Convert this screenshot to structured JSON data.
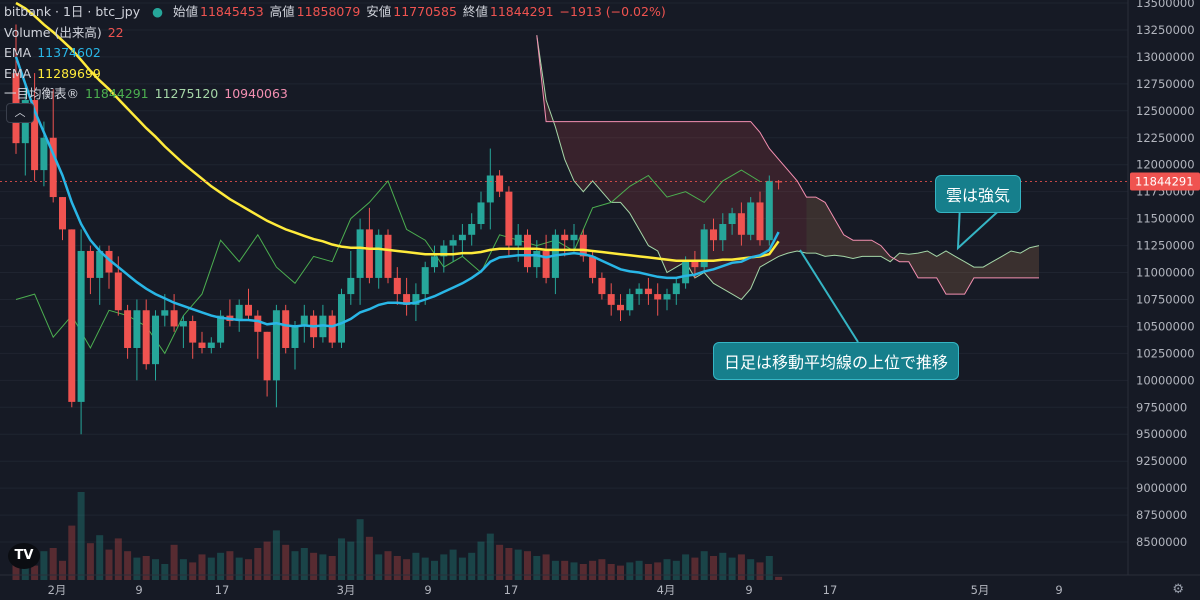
{
  "header": {
    "symbol": "bitbank · 1日 · btc_jpy",
    "ohlc": [
      {
        "label": "始値",
        "value": "11845453"
      },
      {
        "label": "高値",
        "value": "11858079"
      },
      {
        "label": "安値",
        "value": "11770585"
      },
      {
        "label": "終値",
        "value": "11844291"
      }
    ],
    "change": "−1913 (−0.02%)",
    "volume_label": "Volume (出来高)",
    "volume_value": "22",
    "ema1_label": "EMA",
    "ema1_value": "11374602",
    "ema2_label": "EMA",
    "ema2_value": "11289699",
    "ichimoku_label": "一目均衡表®",
    "ichimoku_values": [
      "11844291",
      "11275120",
      "10940063"
    ],
    "collapse_icon": "chevron-up-icon"
  },
  "annotations": {
    "cloud_strong": "雲は強気",
    "price_above_ma": "日足は移動平均線の上位で推移"
  },
  "last_price_label": "11844291",
  "colors": {
    "bg": "#161a25",
    "up": "#26a69a",
    "down": "#ef5350",
    "ema_fast": "#29b6e6",
    "ema_slow": "#ffeb3b",
    "lagging": "#4caf50",
    "span_a": "#a5d6a7",
    "span_b": "#f48fb1",
    "callout": "#167f8c"
  },
  "chart_data": {
    "type": "candlestick",
    "x_ticks": [
      "2月",
      "9",
      "17",
      "3月",
      "9",
      "17",
      "4月",
      "9",
      "17",
      "5月",
      "9"
    ],
    "y_ticks": [
      "13500000",
      "13250000",
      "13000000",
      "12750000",
      "12500000",
      "12250000",
      "12000000",
      "11750000",
      "11500000",
      "11250000",
      "11000000",
      "10750000",
      "10500000",
      "10250000",
      "10000000",
      "9750000",
      "9500000",
      "9250000",
      "9000000",
      "8750000",
      "8500000"
    ],
    "ylim": [
      8250000,
      13500000
    ],
    "candles": [
      [
        12850000,
        13300000,
        12100000,
        12200000
      ],
      [
        12200000,
        12750000,
        11900000,
        12600000
      ],
      [
        12600000,
        12850000,
        11850000,
        11950000
      ],
      [
        11950000,
        12400000,
        11800000,
        12250000
      ],
      [
        12250000,
        12700000,
        11650000,
        11700000
      ],
      [
        11700000,
        11700000,
        11300000,
        11400000
      ],
      [
        11400000,
        11400000,
        9750000,
        9800000
      ],
      [
        9800000,
        11400000,
        9500000,
        11200000
      ],
      [
        11200000,
        11250000,
        10800000,
        10950000
      ],
      [
        10950000,
        11250000,
        10700000,
        11200000
      ],
      [
        11200000,
        11250000,
        10850000,
        11000000
      ],
      [
        11000000,
        11150000,
        10600000,
        10650000
      ],
      [
        10650000,
        10700000,
        10200000,
        10300000
      ],
      [
        10300000,
        10750000,
        10000000,
        10650000
      ],
      [
        10650000,
        10750000,
        10100000,
        10150000
      ],
      [
        10150000,
        10650000,
        10000000,
        10600000
      ],
      [
        10600000,
        10800000,
        10500000,
        10650000
      ],
      [
        10650000,
        10800000,
        10450000,
        10500000
      ],
      [
        10500000,
        10600000,
        10300000,
        10550000
      ],
      [
        10550000,
        10600000,
        10200000,
        10350000
      ],
      [
        10350000,
        10450000,
        10250000,
        10300000
      ],
      [
        10300000,
        10400000,
        10250000,
        10350000
      ],
      [
        10350000,
        10650000,
        10300000,
        10600000
      ],
      [
        10600000,
        10750000,
        10500000,
        10550000
      ],
      [
        10550000,
        10750000,
        10450000,
        10700000
      ],
      [
        10700000,
        10850000,
        10550000,
        10600000
      ],
      [
        10600000,
        10650000,
        10200000,
        10450000
      ],
      [
        10450000,
        10450000,
        9850000,
        10000000
      ],
      [
        10000000,
        10700000,
        9750000,
        10650000
      ],
      [
        10650000,
        10700000,
        10250000,
        10300000
      ],
      [
        10300000,
        10550000,
        10100000,
        10500000
      ],
      [
        10500000,
        10700000,
        10350000,
        10600000
      ],
      [
        10600000,
        10650000,
        10300000,
        10400000
      ],
      [
        10400000,
        10700000,
        10350000,
        10600000
      ],
      [
        10600000,
        10650000,
        10300000,
        10350000
      ],
      [
        10350000,
        10850000,
        10300000,
        10800000
      ],
      [
        10800000,
        11200000,
        10700000,
        10950000
      ],
      [
        10950000,
        11500000,
        10700000,
        11400000
      ],
      [
        11400000,
        11600000,
        10900000,
        10950000
      ],
      [
        10950000,
        11400000,
        10850000,
        11350000
      ],
      [
        11350000,
        11400000,
        10900000,
        10950000
      ],
      [
        10950000,
        11050000,
        10700000,
        10800000
      ],
      [
        10800000,
        10950000,
        10600000,
        10700000
      ],
      [
        10700000,
        10900000,
        10550000,
        10800000
      ],
      [
        10800000,
        11100000,
        10700000,
        11050000
      ],
      [
        11050000,
        11250000,
        11000000,
        11150000
      ],
      [
        11150000,
        11300000,
        11000000,
        11250000
      ],
      [
        11250000,
        11350000,
        11100000,
        11300000
      ],
      [
        11300000,
        11450000,
        11150000,
        11350000
      ],
      [
        11350000,
        11550000,
        11250000,
        11450000
      ],
      [
        11450000,
        11750000,
        11400000,
        11650000
      ],
      [
        11650000,
        12150000,
        11400000,
        11900000
      ],
      [
        11900000,
        11950000,
        11700000,
        11750000
      ],
      [
        11750000,
        11800000,
        11150000,
        11250000
      ],
      [
        11250000,
        11450000,
        11100000,
        11350000
      ],
      [
        11350000,
        11400000,
        11000000,
        11050000
      ],
      [
        11050000,
        11300000,
        10950000,
        11200000
      ],
      [
        11200000,
        11350000,
        10900000,
        10950000
      ],
      [
        10950000,
        11400000,
        10800000,
        11350000
      ],
      [
        11350000,
        11400000,
        11150000,
        11300000
      ],
      [
        11300000,
        11450000,
        11200000,
        11350000
      ],
      [
        11350000,
        11400000,
        11100000,
        11150000
      ],
      [
        11150000,
        11200000,
        10900000,
        10950000
      ],
      [
        10950000,
        11000000,
        10750000,
        10800000
      ],
      [
        10800000,
        10900000,
        10600000,
        10700000
      ],
      [
        10700000,
        10800000,
        10550000,
        10650000
      ],
      [
        10650000,
        10850000,
        10600000,
        10800000
      ],
      [
        10800000,
        10900000,
        10700000,
        10850000
      ],
      [
        10850000,
        10950000,
        10700000,
        10800000
      ],
      [
        10800000,
        10900000,
        10600000,
        10750000
      ],
      [
        10750000,
        10850000,
        10650000,
        10800000
      ],
      [
        10800000,
        10950000,
        10700000,
        10900000
      ],
      [
        10900000,
        11150000,
        10850000,
        11100000
      ],
      [
        11100000,
        11200000,
        10950000,
        11050000
      ],
      [
        11050000,
        11450000,
        11000000,
        11400000
      ],
      [
        11400000,
        11500000,
        11200000,
        11300000
      ],
      [
        11300000,
        11550000,
        11200000,
        11450000
      ],
      [
        11450000,
        11600000,
        11350000,
        11550000
      ],
      [
        11550000,
        11650000,
        11250000,
        11350000
      ],
      [
        11350000,
        11700000,
        11300000,
        11650000
      ],
      [
        11650000,
        11750000,
        11250000,
        11300000
      ],
      [
        11300000,
        11900000,
        11250000,
        11850000
      ],
      [
        11845453,
        11858079,
        11770585,
        11844291
      ]
    ],
    "volume": [
      0.1,
      0.14,
      0.09,
      0.18,
      0.2,
      0.12,
      0.34,
      0.55,
      0.23,
      0.28,
      0.19,
      0.26,
      0.18,
      0.14,
      0.15,
      0.13,
      0.1,
      0.22,
      0.13,
      0.11,
      0.16,
      0.14,
      0.17,
      0.18,
      0.14,
      0.13,
      0.2,
      0.24,
      0.31,
      0.22,
      0.18,
      0.2,
      0.17,
      0.16,
      0.15,
      0.26,
      0.24,
      0.38,
      0.27,
      0.16,
      0.18,
      0.15,
      0.13,
      0.17,
      0.14,
      0.12,
      0.16,
      0.19,
      0.14,
      0.17,
      0.24,
      0.29,
      0.22,
      0.2,
      0.19,
      0.18,
      0.15,
      0.16,
      0.12,
      0.12,
      0.11,
      0.1,
      0.12,
      0.13,
      0.1,
      0.09,
      0.11,
      0.12,
      0.1,
      0.11,
      0.13,
      0.12,
      0.16,
      0.14,
      0.18,
      0.15,
      0.17,
      0.14,
      0.16,
      0.13,
      0.11,
      0.15,
      0.02
    ],
    "ema_fast": [
      13000000,
      12750000,
      12500000,
      12300000,
      12100000,
      11900000,
      11650000,
      11450000,
      11300000,
      11200000,
      11120000,
      11050000,
      10980000,
      10910000,
      10850000,
      10800000,
      10760000,
      10720000,
      10690000,
      10660000,
      10630000,
      10600000,
      10580000,
      10570000,
      10560000,
      10560000,
      10550000,
      10520000,
      10530000,
      10510000,
      10500000,
      10510000,
      10500000,
      10510000,
      10500000,
      10530000,
      10570000,
      10630000,
      10660000,
      10700000,
      10720000,
      10720000,
      10710000,
      10720000,
      10750000,
      10780000,
      10820000,
      10860000,
      10900000,
      10950000,
      11010000,
      11100000,
      11140000,
      11150000,
      11160000,
      11160000,
      11160000,
      11140000,
      11160000,
      11170000,
      11180000,
      11170000,
      11150000,
      11110000,
      11070000,
      11030000,
      11010000,
      11000000,
      10980000,
      10960000,
      10950000,
      10950000,
      10970000,
      10980000,
      11010000,
      11030000,
      11060000,
      11090000,
      11100000,
      11140000,
      11160000,
      11210000,
      11374602
    ],
    "ema_slow": [
      13500000,
      13450000,
      13380000,
      13300000,
      13230000,
      13150000,
      13070000,
      12970000,
      12870000,
      12780000,
      12700000,
      12610000,
      12520000,
      12430000,
      12340000,
      12260000,
      12170000,
      12090000,
      12010000,
      11940000,
      11870000,
      11800000,
      11740000,
      11680000,
      11630000,
      11580000,
      11530000,
      11480000,
      11440000,
      11400000,
      11370000,
      11340000,
      11310000,
      11290000,
      11260000,
      11240000,
      11230000,
      11230000,
      11220000,
      11220000,
      11210000,
      11200000,
      11190000,
      11180000,
      11170000,
      11170000,
      11170000,
      11170000,
      11180000,
      11180000,
      11190000,
      11210000,
      11220000,
      11220000,
      11220000,
      11220000,
      11220000,
      11210000,
      11210000,
      11210000,
      11210000,
      11210000,
      11200000,
      11190000,
      11180000,
      11170000,
      11160000,
      11150000,
      11140000,
      11130000,
      11120000,
      11110000,
      11110000,
      11110000,
      11110000,
      11110000,
      11120000,
      11120000,
      11130000,
      11140000,
      11150000,
      11170000,
      11289699
    ],
    "lagging": [
      [
        0,
        10750000
      ],
      [
        2,
        10800000
      ],
      [
        4,
        10400000
      ],
      [
        6,
        10600000
      ],
      [
        8,
        10300000
      ],
      [
        10,
        10650000
      ],
      [
        12,
        10600000
      ],
      [
        14,
        10500000
      ],
      [
        16,
        10250000
      ],
      [
        18,
        10600000
      ],
      [
        20,
        10800000
      ],
      [
        22,
        11300000
      ],
      [
        24,
        11100000
      ],
      [
        26,
        11350000
      ],
      [
        28,
        11050000
      ],
      [
        30,
        10900000
      ],
      [
        32,
        11150000
      ],
      [
        34,
        11100000
      ],
      [
        36,
        11500000
      ],
      [
        38,
        11650000
      ],
      [
        40,
        11850000
      ],
      [
        42,
        11400000
      ],
      [
        44,
        11300000
      ],
      [
        46,
        11050000
      ],
      [
        48,
        11150000
      ],
      [
        50,
        11000000
      ],
      [
        52,
        11350000
      ],
      [
        54,
        11300000
      ],
      [
        56,
        11250000
      ],
      [
        58,
        11300000
      ],
      [
        60,
        11200000
      ],
      [
        62,
        11600000
      ],
      [
        64,
        11650000
      ],
      [
        66,
        11800000
      ],
      [
        68,
        11900000
      ],
      [
        70,
        11700000
      ],
      [
        72,
        11750000
      ],
      [
        74,
        11650000
      ],
      [
        76,
        11850000
      ],
      [
        78,
        11950000
      ],
      [
        80,
        11844291
      ]
    ],
    "span_a": [
      [
        56,
        13200000
      ],
      [
        57,
        12600000
      ],
      [
        58,
        12350000
      ],
      [
        59,
        12050000
      ],
      [
        60,
        11850000
      ],
      [
        61,
        11750000
      ],
      [
        62,
        11850000
      ],
      [
        63,
        11750000
      ],
      [
        64,
        11650000
      ],
      [
        65,
        11650000
      ],
      [
        66,
        11550000
      ],
      [
        67,
        11400000
      ],
      [
        68,
        11250000
      ],
      [
        69,
        11200000
      ],
      [
        70,
        11000000
      ],
      [
        71,
        11050000
      ],
      [
        72,
        11100000
      ],
      [
        73,
        10950000
      ],
      [
        74,
        11000000
      ],
      [
        75,
        10900000
      ],
      [
        76,
        10850000
      ],
      [
        77,
        10800000
      ],
      [
        78,
        10750000
      ],
      [
        79,
        10850000
      ],
      [
        80,
        11050000
      ],
      [
        81,
        11100000
      ],
      [
        82,
        11150000
      ],
      [
        83,
        11180000
      ],
      [
        84,
        11200000
      ],
      [
        85,
        11180000
      ],
      [
        86,
        11180000
      ],
      [
        87,
        11150000
      ],
      [
        88,
        11160000
      ],
      [
        89,
        11150000
      ],
      [
        90,
        11130000
      ],
      [
        91,
        11150000
      ],
      [
        92,
        11150000
      ],
      [
        93,
        11150000
      ],
      [
        94,
        11100000
      ],
      [
        95,
        11180000
      ],
      [
        96,
        11170000
      ],
      [
        97,
        11180000
      ],
      [
        98,
        11200000
      ],
      [
        99,
        11150000
      ],
      [
        100,
        11200000
      ],
      [
        101,
        11150000
      ],
      [
        102,
        11100000
      ],
      [
        103,
        11050000
      ],
      [
        104,
        11050000
      ],
      [
        105,
        11100000
      ],
      [
        106,
        11150000
      ],
      [
        107,
        11200000
      ],
      [
        108,
        11180000
      ],
      [
        109,
        11230000
      ],
      [
        110,
        11250000
      ]
    ],
    "span_b": [
      [
        56,
        13200000
      ],
      [
        57,
        12400000
      ],
      [
        58,
        12400000
      ],
      [
        59,
        12400000
      ],
      [
        60,
        12400000
      ],
      [
        61,
        12400000
      ],
      [
        62,
        12400000
      ],
      [
        63,
        12400000
      ],
      [
        64,
        12400000
      ],
      [
        65,
        12400000
      ],
      [
        66,
        12400000
      ],
      [
        67,
        12400000
      ],
      [
        68,
        12400000
      ],
      [
        69,
        12400000
      ],
      [
        70,
        12400000
      ],
      [
        71,
        12400000
      ],
      [
        72,
        12400000
      ],
      [
        73,
        12400000
      ],
      [
        74,
        12400000
      ],
      [
        75,
        12400000
      ],
      [
        76,
        12400000
      ],
      [
        77,
        12400000
      ],
      [
        78,
        12400000
      ],
      [
        79,
        12400000
      ],
      [
        80,
        12300000
      ],
      [
        81,
        12150000
      ],
      [
        82,
        12050000
      ],
      [
        83,
        11950000
      ],
      [
        84,
        11850000
      ],
      [
        85,
        11700000
      ],
      [
        86,
        11700000
      ],
      [
        87,
        11650000
      ],
      [
        88,
        11500000
      ],
      [
        89,
        11350000
      ],
      [
        90,
        11300000
      ],
      [
        91,
        11300000
      ],
      [
        92,
        11300000
      ],
      [
        93,
        11250000
      ],
      [
        94,
        11150000
      ],
      [
        95,
        11100000
      ],
      [
        96,
        11100000
      ],
      [
        97,
        10950000
      ],
      [
        98,
        10950000
      ],
      [
        99,
        10950000
      ],
      [
        100,
        10800000
      ],
      [
        101,
        10800000
      ],
      [
        102,
        10800000
      ],
      [
        103,
        10950000
      ],
      [
        104,
        10950000
      ],
      [
        105,
        10950000
      ],
      [
        106,
        10950000
      ],
      [
        107,
        10950000
      ],
      [
        108,
        10950000
      ],
      [
        109,
        10950000
      ],
      [
        110,
        10950000
      ]
    ]
  }
}
